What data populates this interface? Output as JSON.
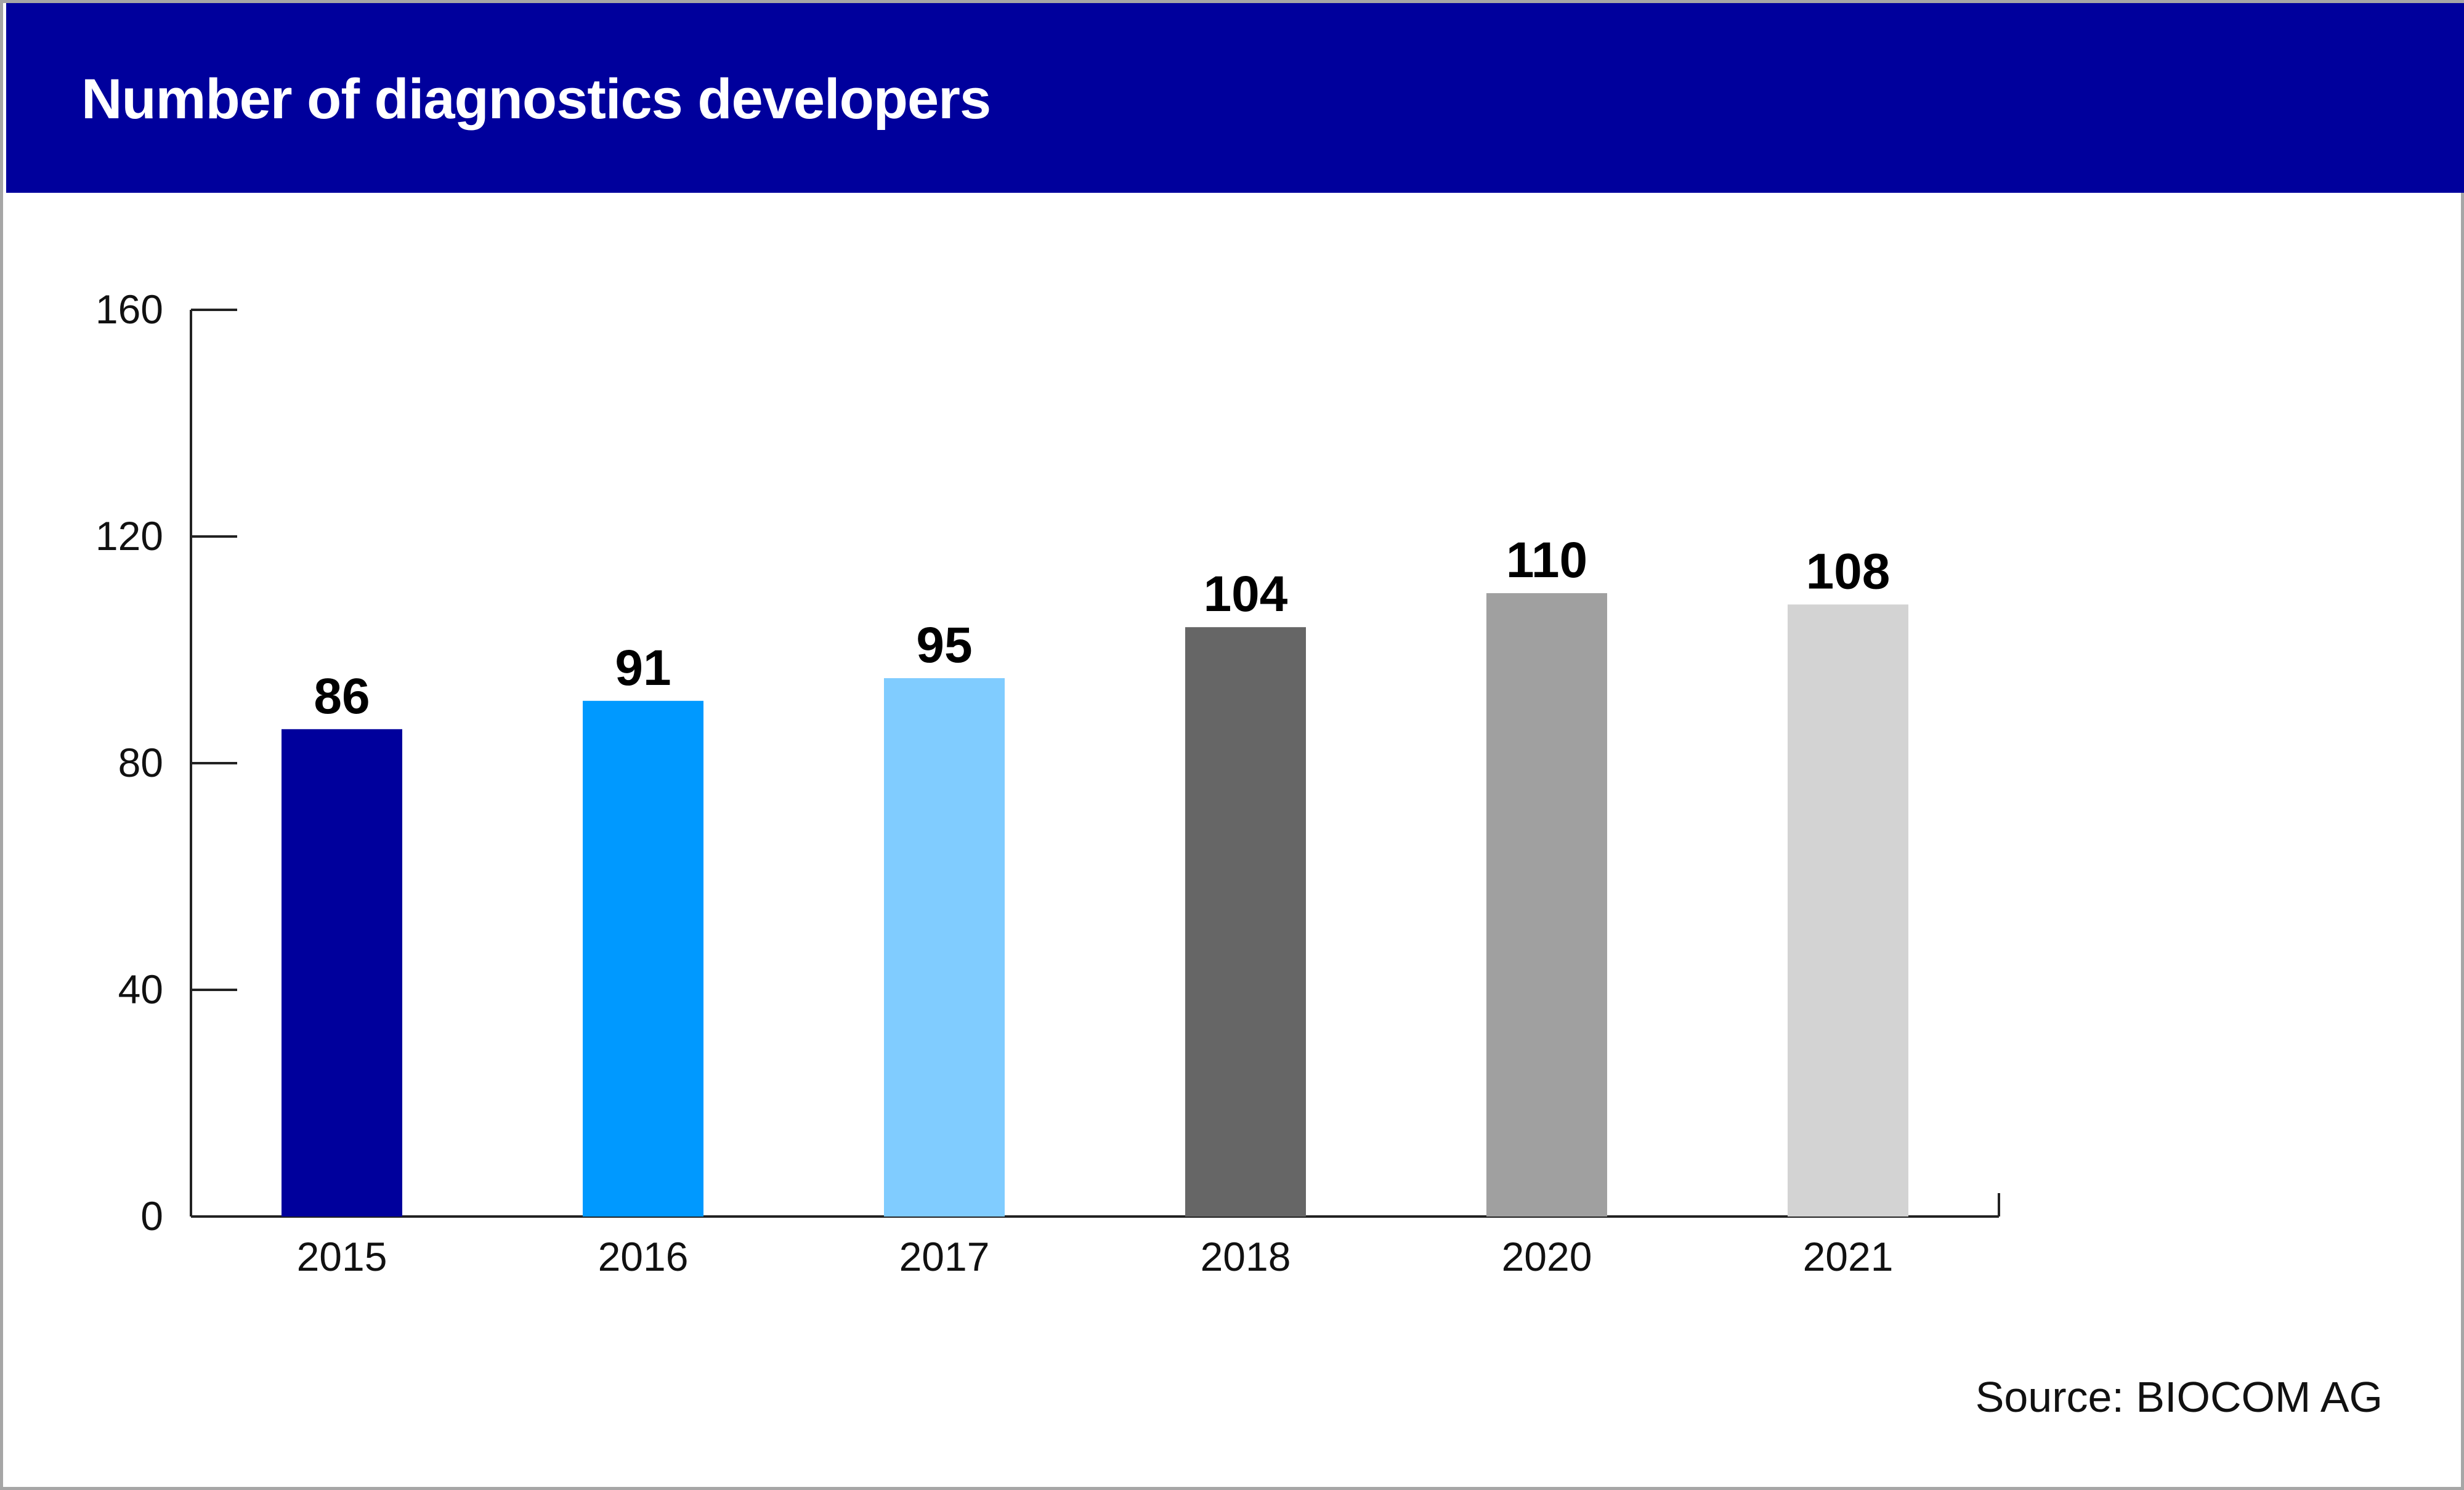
{
  "header": {
    "title": "Number of diagnostics developers",
    "background_color": "#00009c"
  },
  "source": "Source: BIOCOM AG",
  "chart_data": {
    "type": "bar",
    "title": "Number of diagnostics developers",
    "xlabel": "",
    "ylabel": "",
    "categories": [
      "2015",
      "2016",
      "2017",
      "2018",
      "2020",
      "2021"
    ],
    "values": [
      86,
      91,
      95,
      104,
      110,
      108
    ],
    "data_labels": [
      "86",
      "91",
      "95",
      "104",
      "110",
      "108"
    ],
    "colors": [
      "#00009c",
      "#0099ff",
      "#80ccff",
      "#666666",
      "#a0a0a0",
      "#d3d3d3"
    ],
    "ylim": [
      0,
      160
    ],
    "yticks": [
      0,
      40,
      80,
      120,
      160
    ],
    "ytick_labels": [
      "0",
      "40",
      "80",
      "120",
      "160"
    ],
    "grid": false,
    "legend": "none"
  }
}
